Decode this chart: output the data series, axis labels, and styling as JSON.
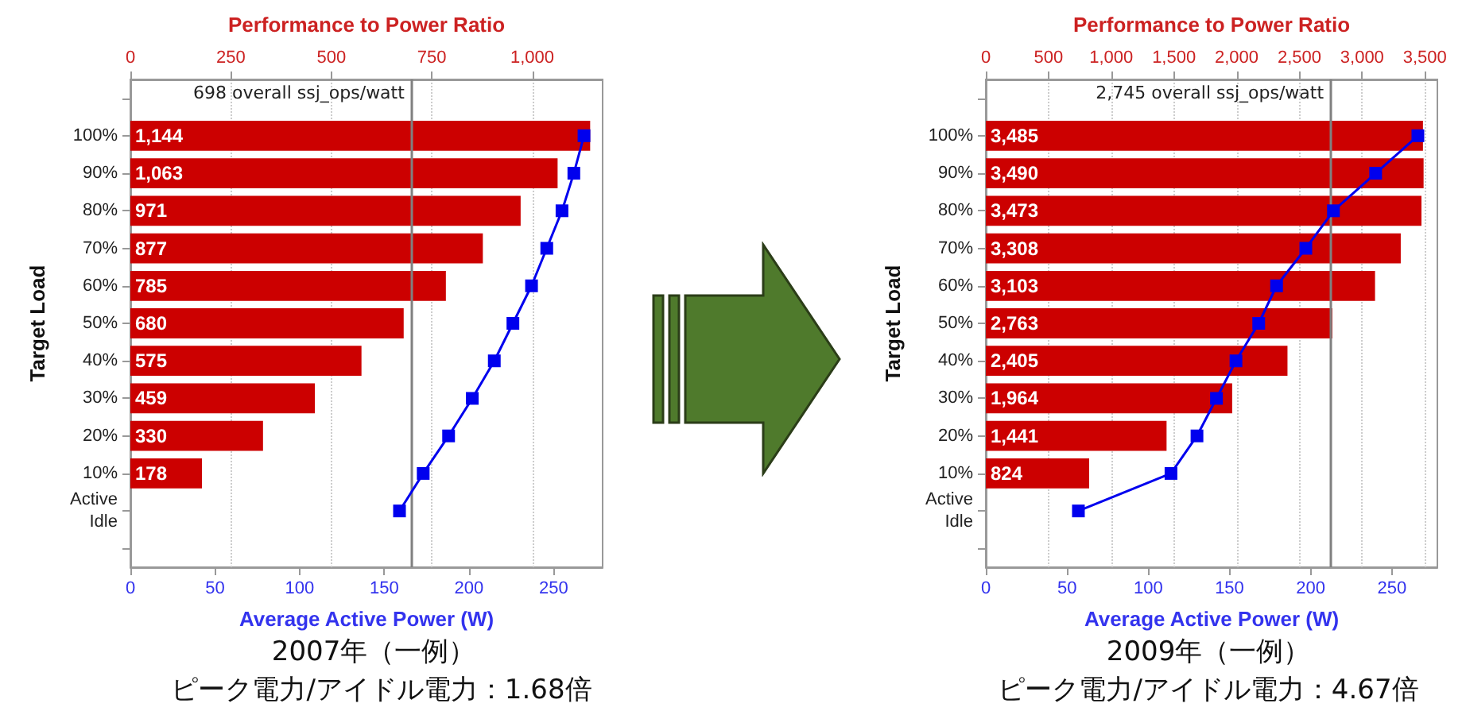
{
  "chart_data": [
    {
      "type": "bar",
      "orientation": "horizontal",
      "x2label": "Performance to Power Ratio",
      "xlabel": "Average Active Power (W)",
      "ylabel": "Target Load",
      "categories": [
        "100%",
        "90%",
        "80%",
        "70%",
        "60%",
        "50%",
        "40%",
        "30%",
        "20%",
        "10%",
        "Active\nIdle"
      ],
      "xlim": [
        0,
        279
      ],
      "xticks": [
        0,
        50,
        100,
        150,
        200,
        250
      ],
      "x2lim": [
        0,
        1175
      ],
      "x2ticks": [
        0,
        250,
        500,
        750,
        {
          "value": 1000,
          "label": "1,000"
        }
      ],
      "grid": "x",
      "marker": "square",
      "series": [
        {
          "axis": "x2",
          "color": "#cc0000",
          "values": [
            1144,
            1063,
            971,
            877,
            785,
            680,
            575,
            459,
            330,
            178,
            null
          ],
          "value_labels": [
            "1,144",
            "1,063",
            "971",
            "877",
            "785",
            "680",
            "575",
            "459",
            "330",
            "178",
            null
          ]
        },
        {
          "type": "line",
          "color": "#0000ee",
          "values": [
            268,
            262,
            255,
            246,
            237,
            226,
            215,
            202,
            188,
            173,
            159
          ]
        }
      ],
      "ref_lines": [
        {
          "axis": "x2",
          "value": 698,
          "label": "698 overall ssj_ops/watt",
          "color": "#808080"
        }
      ],
      "annotations": [
        "2007年（一例）",
        "ピーク電力/アイドル電力：1.68倍"
      ]
    },
    {
      "type": "bar",
      "orientation": "horizontal",
      "x2label": "Performance to Power Ratio",
      "xlabel": "Average Active Power (W)",
      "ylabel": "Target Load",
      "categories": [
        "100%",
        "90%",
        "80%",
        "70%",
        "60%",
        "50%",
        "40%",
        "30%",
        "20%",
        "10%",
        "Active\nIdle"
      ],
      "xlim": [
        0,
        278
      ],
      "xticks": [
        0,
        50,
        100,
        150,
        200,
        250
      ],
      "x2lim": [
        0,
        3600
      ],
      "x2ticks": [
        0,
        500,
        {
          "value": 1000,
          "label": "1,000"
        },
        {
          "value": 1500,
          "label": "1,500"
        },
        {
          "value": 2000,
          "label": "2,000"
        },
        {
          "value": 2500,
          "label": "2,500"
        },
        {
          "value": 3000,
          "label": "3,000"
        },
        {
          "value": 3500,
          "label": "3,500"
        }
      ],
      "grid": "x",
      "marker": "square",
      "series": [
        {
          "axis": "x2",
          "color": "#cc0000",
          "values": [
            3485,
            3490,
            3473,
            3308,
            3103,
            2763,
            2405,
            1964,
            1441,
            824,
            null
          ],
          "value_labels": [
            "3,485",
            "3,490",
            "3,473",
            "3,308",
            "3,103",
            "2,763",
            "2,405",
            "1,964",
            "1,441",
            "824",
            null
          ]
        },
        {
          "type": "line",
          "color": "#0000ee",
          "values": [
            266,
            240,
            214,
            197,
            179,
            168,
            154,
            142,
            130,
            114,
            57
          ]
        }
      ],
      "ref_lines": [
        {
          "axis": "x2",
          "value": 2745,
          "label": "2,745 overall ssj_ops/watt",
          "color": "#808080"
        }
      ],
      "annotations": [
        "2009年（一例）",
        "ピーク電力/アイドル電力：4.67倍"
      ]
    }
  ]
}
